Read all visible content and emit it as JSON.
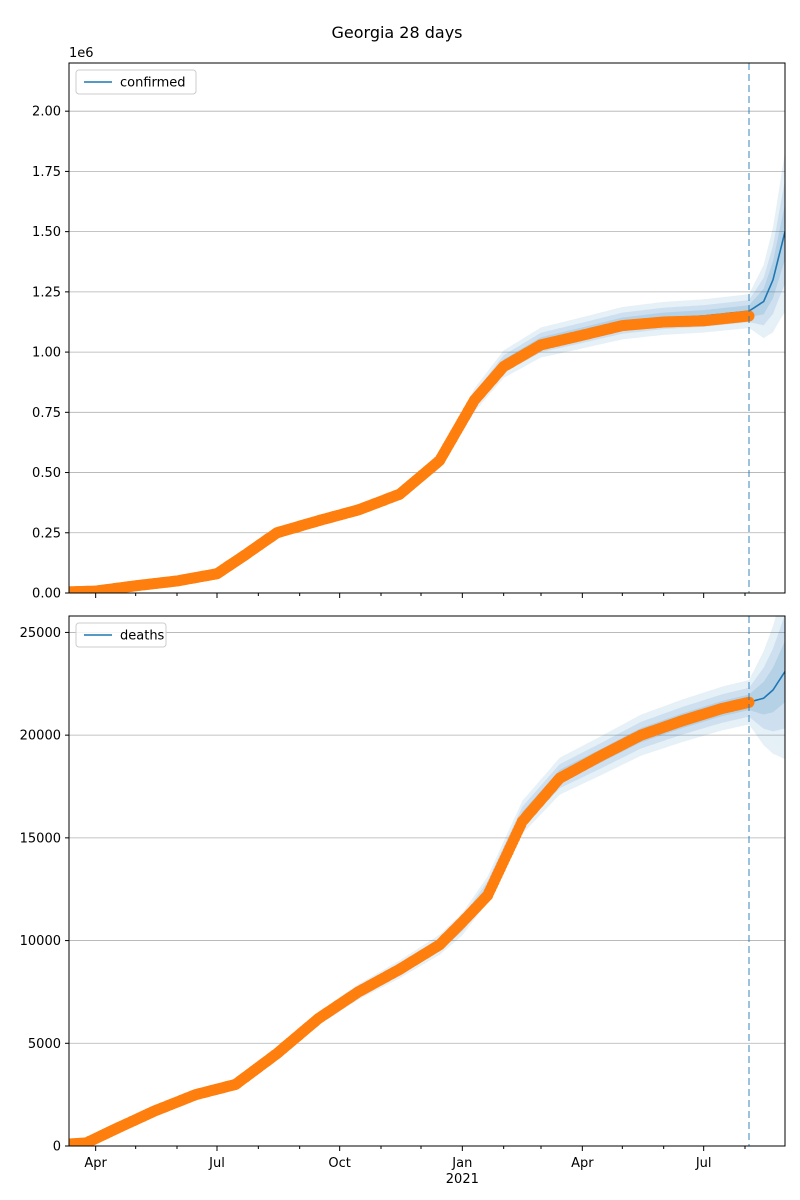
{
  "figure": {
    "title": "Georgia 28 days"
  },
  "chart_data": [
    {
      "type": "line",
      "title": "",
      "xlabel": "",
      "ylabel": "",
      "y_scale_label": "1e6",
      "x_ticks": [
        "Apr",
        "Jul",
        "Oct",
        "Jan",
        "Apr",
        "Jul"
      ],
      "x_year_label": "2021",
      "xlim": [
        "2020-03-12",
        "2021-08-31"
      ],
      "ylim": [
        0,
        2200000
      ],
      "y_ticks": [
        "0.00",
        "0.25",
        "0.50",
        "0.75",
        "1.00",
        "1.25",
        "1.50",
        "1.75",
        "2.00"
      ],
      "grid": "horizontal",
      "legend_position": "upper-left",
      "forecast_start": "2021-08-04",
      "series": [
        {
          "name": "confirmed",
          "color": "#1f77b4",
          "kind": "fitted line with uncertainty bands",
          "x": [
            "2020-03-12",
            "2020-04-01",
            "2020-05-01",
            "2020-06-01",
            "2020-07-01",
            "2020-07-20",
            "2020-08-15",
            "2020-09-15",
            "2020-10-15",
            "2020-11-15",
            "2020-12-15",
            "2021-01-10",
            "2021-02-01",
            "2021-03-01",
            "2021-04-01",
            "2021-05-01",
            "2021-06-01",
            "2021-07-01",
            "2021-08-04",
            "2021-08-15",
            "2021-08-22",
            "2021-08-31"
          ],
          "values": [
            0,
            7000,
            30000,
            50000,
            80000,
            150000,
            250000,
            300000,
            345000,
            410000,
            550000,
            800000,
            950000,
            1040000,
            1080000,
            1120000,
            1140000,
            1150000,
            1170000,
            1210000,
            1300000,
            1500000
          ]
        },
        {
          "name": "",
          "color": "#ff7f0e",
          "kind": "observed points",
          "x": [
            "2020-03-12",
            "2020-04-01",
            "2020-05-01",
            "2020-06-01",
            "2020-07-01",
            "2020-07-20",
            "2020-08-15",
            "2020-09-15",
            "2020-10-15",
            "2020-11-15",
            "2020-12-15",
            "2021-01-10",
            "2021-02-01",
            "2021-03-01",
            "2021-04-01",
            "2021-05-01",
            "2021-06-01",
            "2021-07-01",
            "2021-08-04"
          ],
          "values": [
            5000,
            8000,
            30000,
            50000,
            80000,
            150000,
            250000,
            300000,
            345000,
            410000,
            550000,
            800000,
            940000,
            1030000,
            1070000,
            1110000,
            1125000,
            1130000,
            1150000
          ]
        }
      ]
    },
    {
      "type": "line",
      "title": "",
      "xlabel": "",
      "ylabel": "",
      "x_ticks": [
        "Apr",
        "Jul",
        "Oct",
        "Jan",
        "Apr",
        "Jul"
      ],
      "x_year_label": "2021",
      "xlim": [
        "2020-03-12",
        "2021-08-31"
      ],
      "ylim": [
        0,
        25800
      ],
      "y_ticks": [
        "0",
        "5000",
        "10000",
        "15000",
        "20000",
        "25000"
      ],
      "grid": "horizontal",
      "legend_position": "upper-left",
      "forecast_start": "2021-08-04",
      "series": [
        {
          "name": "deaths",
          "color": "#1f77b4",
          "kind": "fitted line with uncertainty bands",
          "x": [
            "2020-03-12",
            "2020-03-25",
            "2020-04-15",
            "2020-05-15",
            "2020-06-15",
            "2020-07-15",
            "2020-08-15",
            "2020-09-15",
            "2020-10-15",
            "2020-11-15",
            "2020-12-15",
            "2021-01-01",
            "2021-01-20",
            "2021-02-15",
            "2021-03-15",
            "2021-04-15",
            "2021-05-15",
            "2021-06-15",
            "2021-07-15",
            "2021-08-04",
            "2021-08-15",
            "2021-08-22",
            "2021-08-31"
          ],
          "values": [
            100,
            150,
            800,
            1700,
            2500,
            3000,
            4500,
            6200,
            7500,
            8600,
            9800,
            10800,
            12500,
            16000,
            18000,
            19000,
            20000,
            20700,
            21300,
            21600,
            21800,
            22200,
            23100
          ]
        },
        {
          "name": "",
          "color": "#ff7f0e",
          "kind": "observed points",
          "x": [
            "2020-03-12",
            "2020-03-25",
            "2020-04-15",
            "2020-05-15",
            "2020-06-15",
            "2020-07-15",
            "2020-08-15",
            "2020-09-15",
            "2020-10-15",
            "2020-11-15",
            "2020-12-15",
            "2021-01-01",
            "2021-01-20",
            "2021-02-15",
            "2021-03-15",
            "2021-04-15",
            "2021-05-15",
            "2021-06-15",
            "2021-07-15",
            "2021-08-04"
          ],
          "values": [
            100,
            150,
            800,
            1700,
            2500,
            3000,
            4500,
            6200,
            7500,
            8600,
            9800,
            10900,
            12200,
            15800,
            17900,
            19000,
            20000,
            20700,
            21300,
            21600
          ]
        }
      ]
    }
  ]
}
